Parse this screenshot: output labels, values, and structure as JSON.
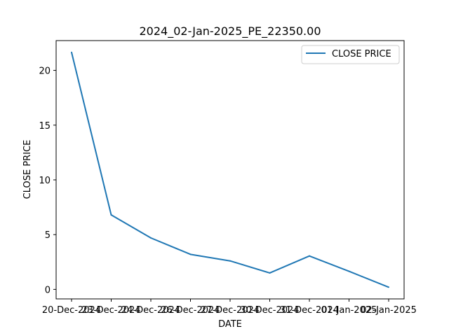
{
  "chart_data": {
    "type": "line",
    "title": "2024_02-Jan-2025_PE_22350.00",
    "xlabel": "DATE",
    "ylabel": "CLOSE PRICE",
    "categories": [
      "20-Dec-2024",
      "23-Dec-2024",
      "24-Dec-2024",
      "26-Dec-2024",
      "27-Dec-2024",
      "30-Dec-2024",
      "31-Dec-2024",
      "01-Jan-2025",
      "02-Jan-2025"
    ],
    "series": [
      {
        "name": "CLOSE PRICE",
        "values": [
          21.65,
          6.8,
          4.7,
          3.2,
          2.6,
          1.5,
          3.05,
          1.65,
          0.2
        ],
        "color": "#1f77b4"
      }
    ],
    "yticks": [
      0,
      5,
      10,
      15,
      20
    ],
    "ylim": [
      -0.87,
      22.72
    ],
    "grid": false,
    "legend": "top-right"
  }
}
